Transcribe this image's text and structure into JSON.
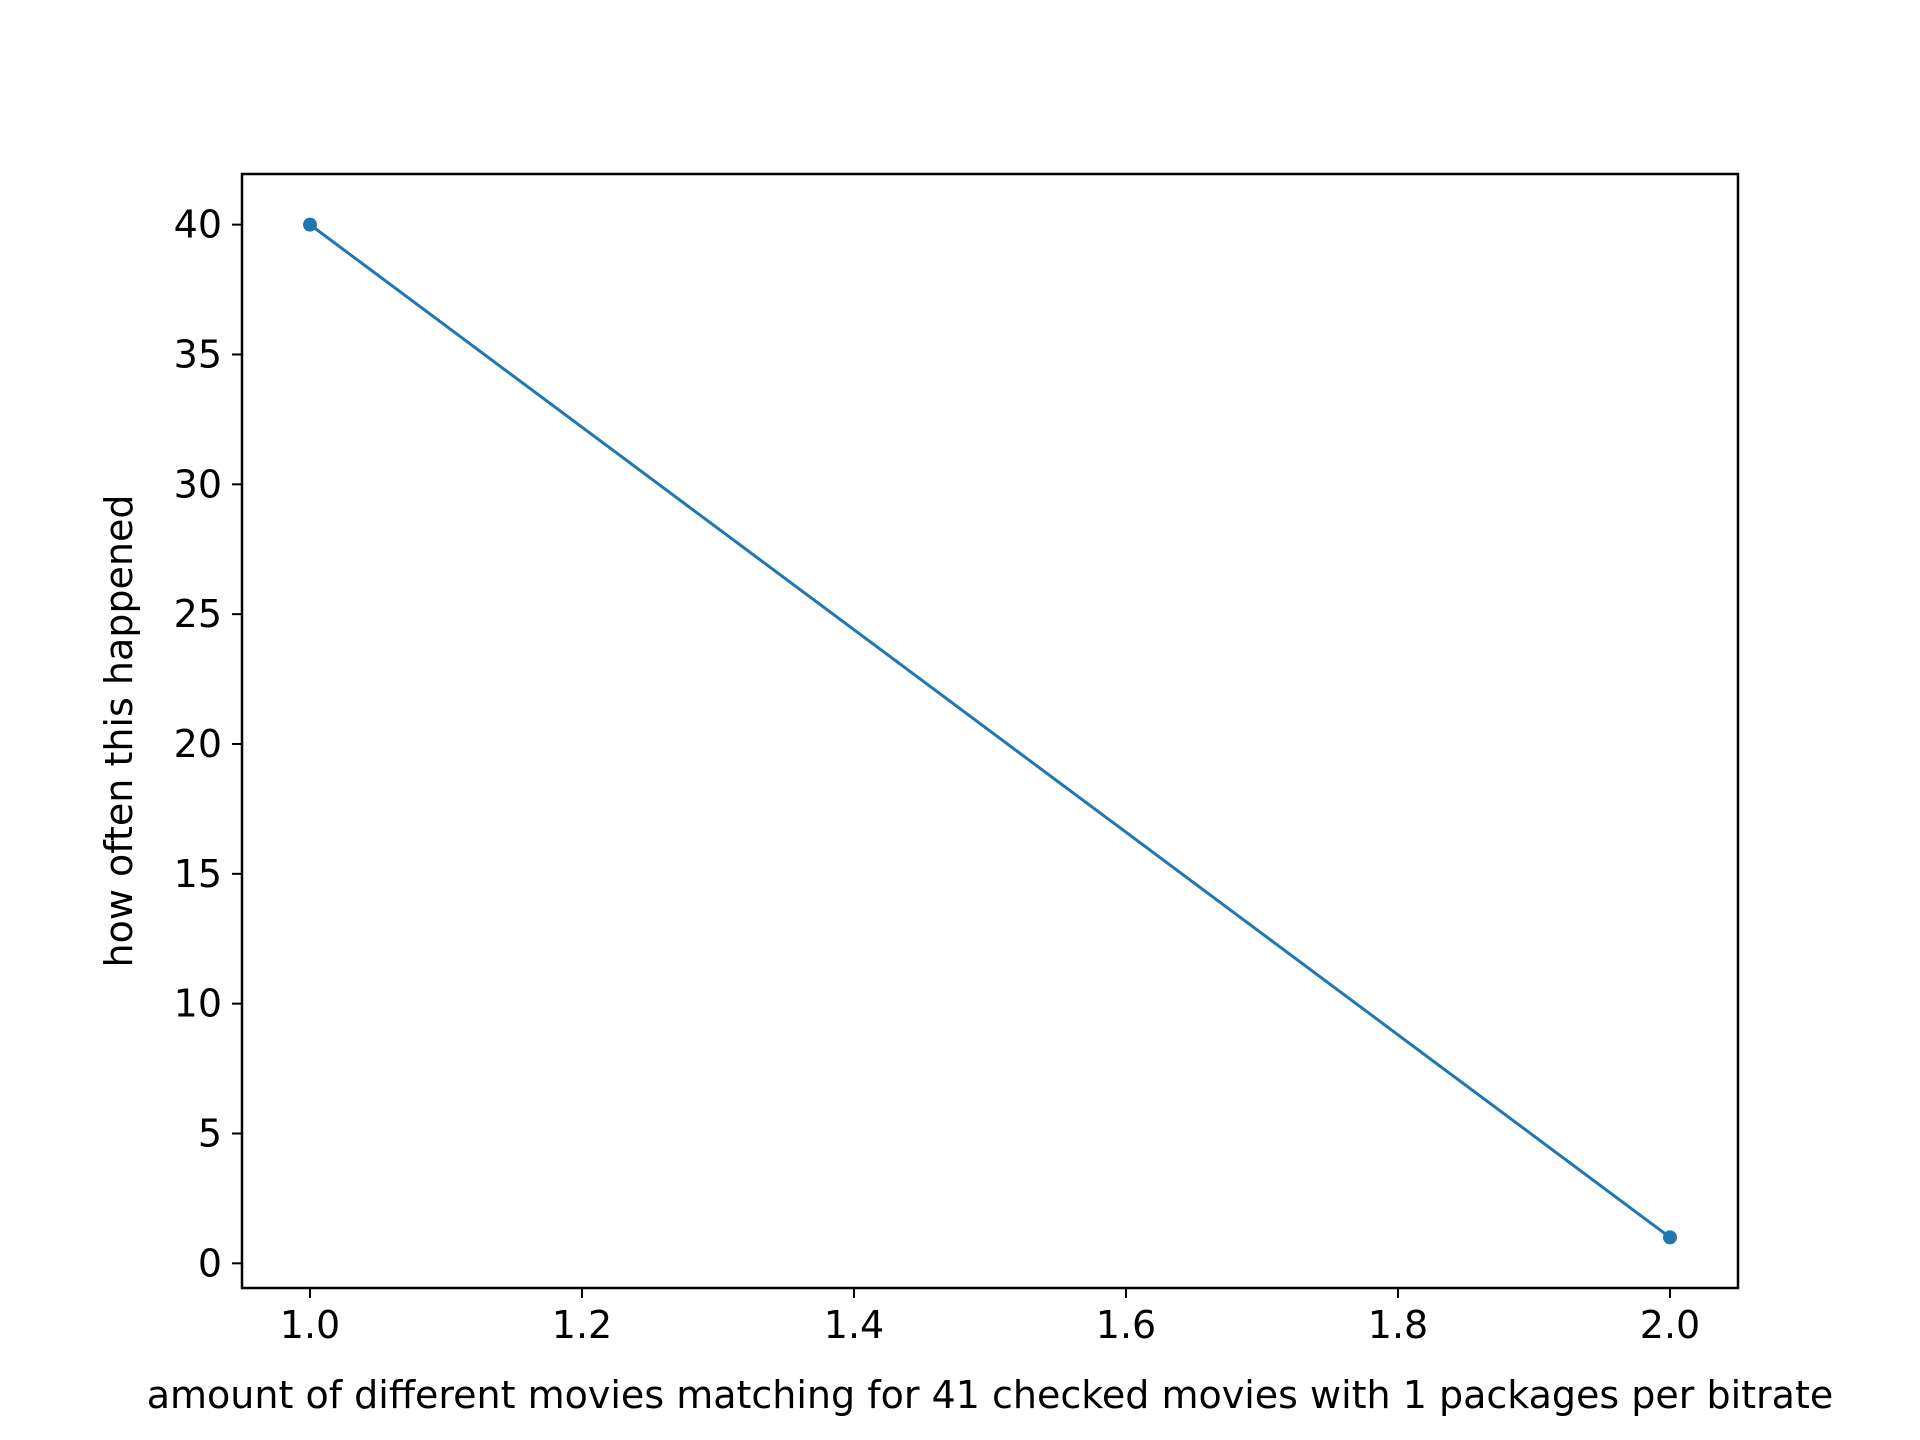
{
  "chart_data": {
    "type": "line",
    "xlabel": "amount of different movies matching for 41 checked movies with 1 packages per bitrate",
    "ylabel": "how often this happened",
    "xlim": [
      0.95,
      2.05
    ],
    "ylim": [
      -0.95,
      41.95
    ],
    "xticks": [
      1.0,
      1.2,
      1.4,
      1.6,
      1.8,
      2.0
    ],
    "xtick_labels": [
      "1.0",
      "1.2",
      "1.4",
      "1.6",
      "1.8",
      "2.0"
    ],
    "yticks": [
      0,
      5,
      10,
      15,
      20,
      25,
      30,
      35,
      40
    ],
    "ytick_labels": [
      "0",
      "5",
      "10",
      "15",
      "20",
      "25",
      "30",
      "35",
      "40"
    ],
    "grid": false,
    "series": [
      {
        "x": [
          1.0,
          2.0
        ],
        "y": [
          40,
          1
        ],
        "color": "#1f77b4",
        "marker": "circle"
      }
    ]
  }
}
